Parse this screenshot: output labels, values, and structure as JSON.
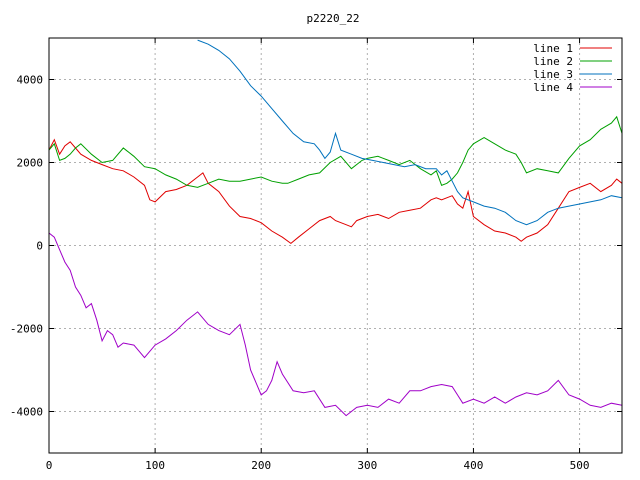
{
  "chart_data": {
    "type": "line",
    "title": "p2220_22",
    "xlabel": "",
    "ylabel": "",
    "xlim": [
      0,
      540
    ],
    "ylim": [
      -5000,
      5000
    ],
    "x_ticks": [
      0,
      100,
      200,
      300,
      400,
      500
    ],
    "y_ticks": [
      -4000,
      -2000,
      0,
      2000,
      4000
    ],
    "grid": true,
    "legend_position": "top-right",
    "series": [
      {
        "name": "line 1",
        "color": "#e00000",
        "points": [
          [
            0,
            2300
          ],
          [
            5,
            2550
          ],
          [
            10,
            2200
          ],
          [
            15,
            2400
          ],
          [
            20,
            2500
          ],
          [
            25,
            2350
          ],
          [
            30,
            2200
          ],
          [
            40,
            2050
          ],
          [
            50,
            1950
          ],
          [
            60,
            1850
          ],
          [
            70,
            1800
          ],
          [
            80,
            1650
          ],
          [
            90,
            1450
          ],
          [
            95,
            1100
          ],
          [
            100,
            1050
          ],
          [
            110,
            1300
          ],
          [
            120,
            1350
          ],
          [
            130,
            1450
          ],
          [
            140,
            1650
          ],
          [
            145,
            1750
          ],
          [
            150,
            1500
          ],
          [
            160,
            1300
          ],
          [
            170,
            950
          ],
          [
            180,
            700
          ],
          [
            190,
            650
          ],
          [
            200,
            550
          ],
          [
            210,
            350
          ],
          [
            220,
            200
          ],
          [
            228,
            50
          ],
          [
            235,
            200
          ],
          [
            245,
            400
          ],
          [
            255,
            600
          ],
          [
            265,
            700
          ],
          [
            270,
            600
          ],
          [
            280,
            500
          ],
          [
            285,
            450
          ],
          [
            290,
            600
          ],
          [
            300,
            700
          ],
          [
            310,
            750
          ],
          [
            320,
            650
          ],
          [
            330,
            800
          ],
          [
            340,
            850
          ],
          [
            350,
            900
          ],
          [
            355,
            1000
          ],
          [
            360,
            1100
          ],
          [
            365,
            1150
          ],
          [
            370,
            1100
          ],
          [
            380,
            1200
          ],
          [
            385,
            1000
          ],
          [
            390,
            900
          ],
          [
            395,
            1300
          ],
          [
            400,
            700
          ],
          [
            410,
            500
          ],
          [
            420,
            350
          ],
          [
            430,
            300
          ],
          [
            440,
            200
          ],
          [
            445,
            100
          ],
          [
            450,
            200
          ],
          [
            460,
            300
          ],
          [
            470,
            500
          ],
          [
            480,
            900
          ],
          [
            490,
            1300
          ],
          [
            500,
            1400
          ],
          [
            510,
            1500
          ],
          [
            520,
            1300
          ],
          [
            530,
            1450
          ],
          [
            535,
            1600
          ],
          [
            540,
            1500
          ]
        ]
      },
      {
        "name": "line 2",
        "color": "#00a000",
        "points": [
          [
            0,
            2300
          ],
          [
            5,
            2450
          ],
          [
            10,
            2050
          ],
          [
            15,
            2100
          ],
          [
            20,
            2200
          ],
          [
            25,
            2350
          ],
          [
            30,
            2450
          ],
          [
            40,
            2200
          ],
          [
            50,
            2000
          ],
          [
            60,
            2050
          ],
          [
            70,
            2350
          ],
          [
            80,
            2150
          ],
          [
            90,
            1900
          ],
          [
            100,
            1850
          ],
          [
            110,
            1700
          ],
          [
            120,
            1600
          ],
          [
            130,
            1450
          ],
          [
            140,
            1400
          ],
          [
            150,
            1500
          ],
          [
            160,
            1600
          ],
          [
            170,
            1550
          ],
          [
            180,
            1550
          ],
          [
            190,
            1600
          ],
          [
            200,
            1650
          ],
          [
            210,
            1550
          ],
          [
            220,
            1500
          ],
          [
            225,
            1500
          ],
          [
            235,
            1600
          ],
          [
            245,
            1700
          ],
          [
            255,
            1750
          ],
          [
            265,
            2000
          ],
          [
            275,
            2150
          ],
          [
            285,
            1850
          ],
          [
            295,
            2050
          ],
          [
            300,
            2100
          ],
          [
            310,
            2150
          ],
          [
            320,
            2050
          ],
          [
            330,
            1950
          ],
          [
            340,
            2050
          ],
          [
            350,
            1850
          ],
          [
            360,
            1700
          ],
          [
            365,
            1800
          ],
          [
            370,
            1450
          ],
          [
            375,
            1500
          ],
          [
            380,
            1600
          ],
          [
            385,
            1750
          ],
          [
            390,
            2000
          ],
          [
            395,
            2300
          ],
          [
            400,
            2450
          ],
          [
            410,
            2600
          ],
          [
            420,
            2450
          ],
          [
            430,
            2300
          ],
          [
            440,
            2200
          ],
          [
            445,
            2000
          ],
          [
            450,
            1750
          ],
          [
            460,
            1850
          ],
          [
            470,
            1800
          ],
          [
            480,
            1750
          ],
          [
            490,
            2100
          ],
          [
            500,
            2400
          ],
          [
            510,
            2550
          ],
          [
            520,
            2800
          ],
          [
            530,
            2950
          ],
          [
            535,
            3100
          ],
          [
            540,
            2700
          ]
        ]
      },
      {
        "name": "line 3",
        "color": "#0072bd",
        "points": [
          [
            140,
            4950
          ],
          [
            150,
            4850
          ],
          [
            160,
            4700
          ],
          [
            170,
            4500
          ],
          [
            180,
            4200
          ],
          [
            190,
            3850
          ],
          [
            200,
            3600
          ],
          [
            210,
            3300
          ],
          [
            220,
            3000
          ],
          [
            230,
            2700
          ],
          [
            240,
            2500
          ],
          [
            250,
            2450
          ],
          [
            255,
            2300
          ],
          [
            260,
            2100
          ],
          [
            265,
            2250
          ],
          [
            270,
            2700
          ],
          [
            275,
            2300
          ],
          [
            285,
            2200
          ],
          [
            295,
            2100
          ],
          [
            305,
            2050
          ],
          [
            315,
            2000
          ],
          [
            325,
            1950
          ],
          [
            335,
            1900
          ],
          [
            345,
            1950
          ],
          [
            355,
            1850
          ],
          [
            365,
            1850
          ],
          [
            370,
            1700
          ],
          [
            375,
            1800
          ],
          [
            380,
            1550
          ],
          [
            385,
            1300
          ],
          [
            390,
            1150
          ],
          [
            400,
            1050
          ],
          [
            410,
            950
          ],
          [
            420,
            900
          ],
          [
            430,
            800
          ],
          [
            440,
            600
          ],
          [
            450,
            500
          ],
          [
            460,
            600
          ],
          [
            470,
            800
          ],
          [
            480,
            900
          ],
          [
            490,
            950
          ],
          [
            500,
            1000
          ],
          [
            510,
            1050
          ],
          [
            520,
            1100
          ],
          [
            530,
            1200
          ],
          [
            540,
            1150
          ]
        ]
      },
      {
        "name": "line 4",
        "color": "#a000c8",
        "points": [
          [
            0,
            300
          ],
          [
            5,
            200
          ],
          [
            10,
            -100
          ],
          [
            15,
            -400
          ],
          [
            20,
            -600
          ],
          [
            25,
            -1000
          ],
          [
            30,
            -1200
          ],
          [
            35,
            -1500
          ],
          [
            40,
            -1400
          ],
          [
            45,
            -1800
          ],
          [
            50,
            -2300
          ],
          [
            55,
            -2050
          ],
          [
            60,
            -2150
          ],
          [
            65,
            -2450
          ],
          [
            70,
            -2350
          ],
          [
            80,
            -2400
          ],
          [
            90,
            -2700
          ],
          [
            100,
            -2400
          ],
          [
            110,
            -2250
          ],
          [
            120,
            -2050
          ],
          [
            130,
            -1800
          ],
          [
            140,
            -1600
          ],
          [
            150,
            -1900
          ],
          [
            160,
            -2050
          ],
          [
            170,
            -2150
          ],
          [
            180,
            -1900
          ],
          [
            185,
            -2400
          ],
          [
            190,
            -3000
          ],
          [
            195,
            -3300
          ],
          [
            200,
            -3600
          ],
          [
            205,
            -3500
          ],
          [
            210,
            -3250
          ],
          [
            215,
            -2800
          ],
          [
            220,
            -3100
          ],
          [
            230,
            -3500
          ],
          [
            240,
            -3550
          ],
          [
            250,
            -3500
          ],
          [
            260,
            -3900
          ],
          [
            270,
            -3850
          ],
          [
            280,
            -4100
          ],
          [
            290,
            -3900
          ],
          [
            300,
            -3850
          ],
          [
            310,
            -3900
          ],
          [
            320,
            -3700
          ],
          [
            330,
            -3800
          ],
          [
            340,
            -3500
          ],
          [
            350,
            -3500
          ],
          [
            360,
            -3400
          ],
          [
            370,
            -3350
          ],
          [
            380,
            -3400
          ],
          [
            385,
            -3600
          ],
          [
            390,
            -3800
          ],
          [
            400,
            -3700
          ],
          [
            410,
            -3800
          ],
          [
            420,
            -3650
          ],
          [
            430,
            -3800
          ],
          [
            440,
            -3650
          ],
          [
            450,
            -3550
          ],
          [
            460,
            -3600
          ],
          [
            470,
            -3500
          ],
          [
            480,
            -3250
          ],
          [
            490,
            -3600
          ],
          [
            500,
            -3700
          ],
          [
            510,
            -3850
          ],
          [
            520,
            -3900
          ],
          [
            530,
            -3800
          ],
          [
            540,
            -3850
          ]
        ]
      }
    ]
  }
}
